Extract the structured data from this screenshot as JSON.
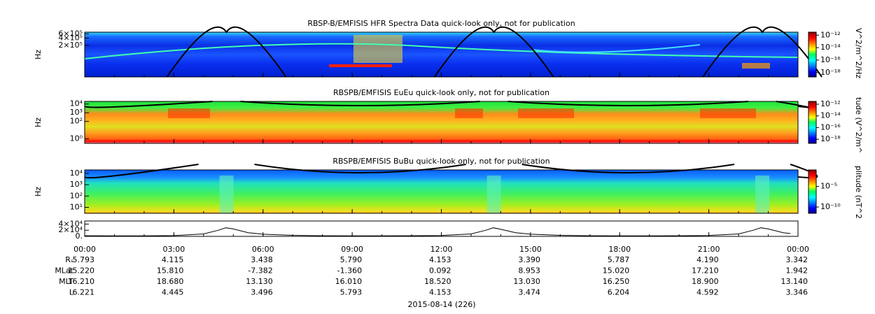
{
  "chart_data": [
    {
      "type": "spectrogram",
      "title": "RBSP-B/EMFISIS  HFR Spectra Data quick-look only, not for publication",
      "ylabel": "Hz",
      "ylog": true,
      "ylim": [
        10000,
        700000
      ],
      "yticks": [
        {
          "value": 600000,
          "label": "6×10⁵"
        },
        {
          "value": 400000,
          "label": "4×10⁵"
        },
        {
          "value": 200000,
          "label": "2×10⁵"
        }
      ],
      "colorbar": {
        "label": "V^2/m^2/Hz",
        "log": true,
        "lim": [
          2e-19,
          3e-12
        ],
        "ticks": [
          {
            "value": 1e-12,
            "label": "10⁻¹²"
          },
          {
            "value": 1e-14,
            "label": "10⁻¹⁴"
          },
          {
            "value": 1e-16,
            "label": "10⁻¹⁶"
          },
          {
            "value": 1e-18,
            "label": "10⁻¹⁸"
          }
        ]
      }
    },
    {
      "type": "spectrogram",
      "title": "RBSPB/EMFISIS  EuEu quick-look only, not for publication",
      "ylabel": "Hz",
      "ylog": true,
      "ylim": [
        0.3,
        20000
      ],
      "yticks": [
        {
          "value": 10000,
          "label": "10⁴"
        },
        {
          "value": 1000,
          "label": "10³"
        },
        {
          "value": 100,
          "label": "10²"
        },
        {
          "value": 1,
          "label": "10⁰"
        }
      ],
      "colorbar": {
        "label": "tude (V^2/m^",
        "log": true,
        "lim": [
          2e-19,
          3e-12
        ],
        "ticks": [
          {
            "value": 1e-12,
            "label": "10⁻¹²"
          },
          {
            "value": 1e-14,
            "label": "10⁻¹⁴"
          },
          {
            "value": 1e-16,
            "label": "10⁻¹⁶"
          },
          {
            "value": 1e-18,
            "label": "10⁻¹⁸"
          }
        ]
      }
    },
    {
      "type": "spectrogram",
      "title": "RBSPB/EMFISIS  BuBu quick-look only, not for publication",
      "ylabel": "Hz",
      "ylog": true,
      "ylim": [
        3,
        20000
      ],
      "yticks": [
        {
          "value": 10000,
          "label": "10⁴"
        },
        {
          "value": 1000,
          "label": "10³"
        },
        {
          "value": 100,
          "label": "10²"
        },
        {
          "value": 10,
          "label": "10¹"
        }
      ],
      "colorbar": {
        "label": "plitude (nT^2",
        "log": true,
        "lim": [
          3e-12,
          0.1
        ],
        "ticks": [
          {
            "value": 1e-05,
            "label": "10⁻⁵"
          },
          {
            "value": 1e-10,
            "label": "10⁻¹⁰"
          }
        ]
      }
    },
    {
      "type": "line",
      "ylim": [
        0,
        50000
      ],
      "yticks": [
        {
          "value": 40000,
          "label": "4×10⁴"
        },
        {
          "value": 20000,
          "label": "2×10⁴"
        },
        {
          "value": 0,
          "label": "0."
        }
      ],
      "x": [
        "00:00",
        "01:00",
        "02:00",
        "03:00",
        "04:00",
        "04:30",
        "04:45",
        "05:00",
        "05:30",
        "06:00",
        "07:00",
        "08:00",
        "09:30",
        "11:00",
        "12:00",
        "13:00",
        "13:30",
        "13:45",
        "14:00",
        "14:30",
        "15:00",
        "16:00",
        "17:00",
        "19:00",
        "20:00",
        "21:00",
        "22:00",
        "22:30",
        "22:45",
        "23:00",
        "23:30",
        "23:45"
      ],
      "values": [
        2000,
        1500,
        1500,
        2500,
        8000,
        20000,
        28000,
        24000,
        12000,
        7000,
        3500,
        2000,
        1500,
        2000,
        3000,
        8000,
        20000,
        28000,
        23000,
        12000,
        7000,
        3500,
        2000,
        1500,
        2000,
        3000,
        8000,
        20000,
        28000,
        24000,
        12000,
        9000
      ],
      "color": "#000000"
    }
  ],
  "time_axis": {
    "ticks": [
      "00:00",
      "03:00",
      "06:00",
      "09:00",
      "12:00",
      "15:00",
      "18:00",
      "21:00",
      "00:00"
    ]
  },
  "ephemeris": {
    "rows": [
      {
        "label": "Rₛ",
        "values": [
          "5.793",
          "4.115",
          "3.438",
          "5.790",
          "4.153",
          "3.390",
          "5.787",
          "4.190",
          "3.342"
        ]
      },
      {
        "label": "MLat",
        "values": [
          "15.220",
          "15.810",
          "-7.382",
          "-1.360",
          "0.092",
          "8.953",
          "15.020",
          "17.210",
          "1.942"
        ]
      },
      {
        "label": "MLT",
        "values": [
          "16.210",
          "18.680",
          "13.130",
          "16.010",
          "18.520",
          "13.030",
          "16.250",
          "18.900",
          "13.140"
        ]
      },
      {
        "label": "L",
        "values": [
          "6.221",
          "4.445",
          "3.496",
          "5.793",
          "4.153",
          "3.474",
          "6.204",
          "4.592",
          "3.346"
        ]
      }
    ]
  },
  "xlabel": "2015-08-14 (226)"
}
